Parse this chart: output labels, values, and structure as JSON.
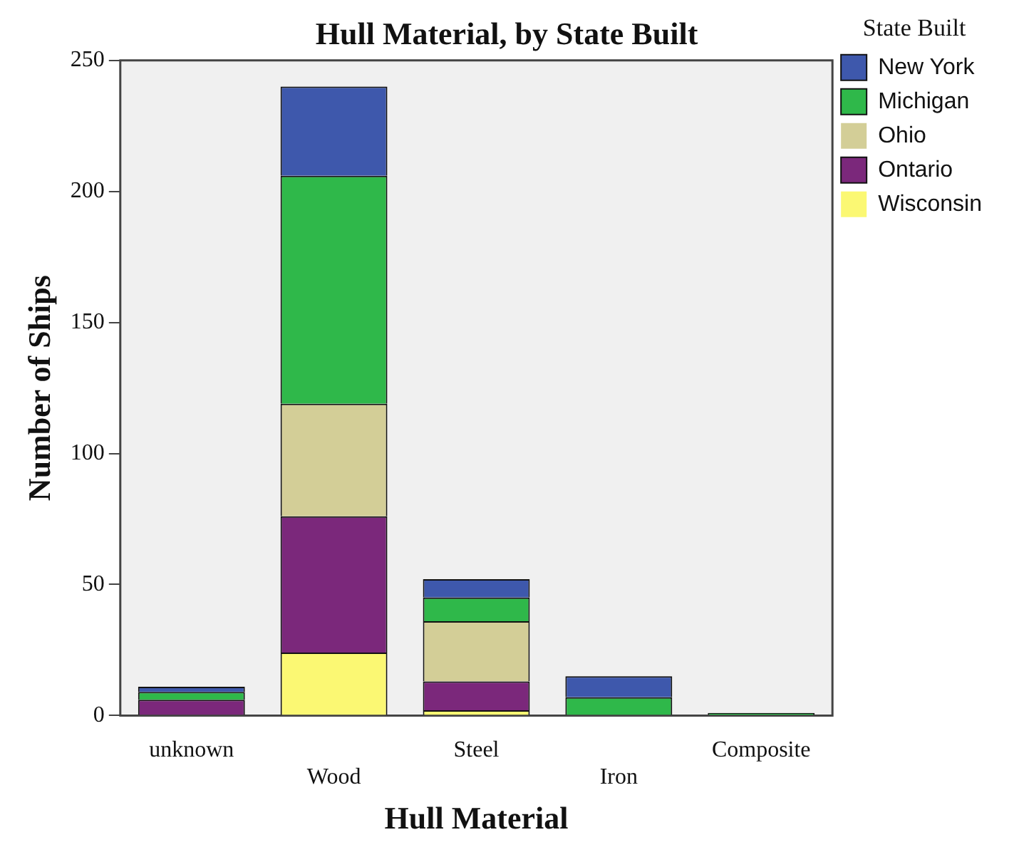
{
  "chart_data": {
    "type": "bar",
    "title": "Hull Material, by State Built",
    "xlabel": "Hull Material",
    "ylabel": "Number of Ships",
    "legend_title": "State Built",
    "categories": [
      "unknown",
      "Wood",
      "Steel",
      "Iron",
      "Composite"
    ],
    "series": [
      {
        "name": "Wisconsin",
        "color": "#fbf873",
        "values": [
          0,
          24,
          2,
          0,
          0
        ]
      },
      {
        "name": "Ontario",
        "color": "#7b287b",
        "values": [
          6,
          52,
          11,
          0,
          0
        ]
      },
      {
        "name": "Ohio",
        "color": "#d3ce97",
        "values": [
          0,
          43,
          23,
          0,
          0
        ]
      },
      {
        "name": "Michigan",
        "color": "#2fb84a",
        "values": [
          3,
          87,
          9,
          7,
          1
        ]
      },
      {
        "name": "New York",
        "color": "#3e58ac",
        "values": [
          2,
          34,
          7,
          8,
          0
        ]
      }
    ],
    "stacked": true,
    "ylim": [
      0,
      250
    ],
    "yticks": [
      0,
      50,
      100,
      150,
      200,
      250
    ],
    "grid": false,
    "legend": "right"
  }
}
